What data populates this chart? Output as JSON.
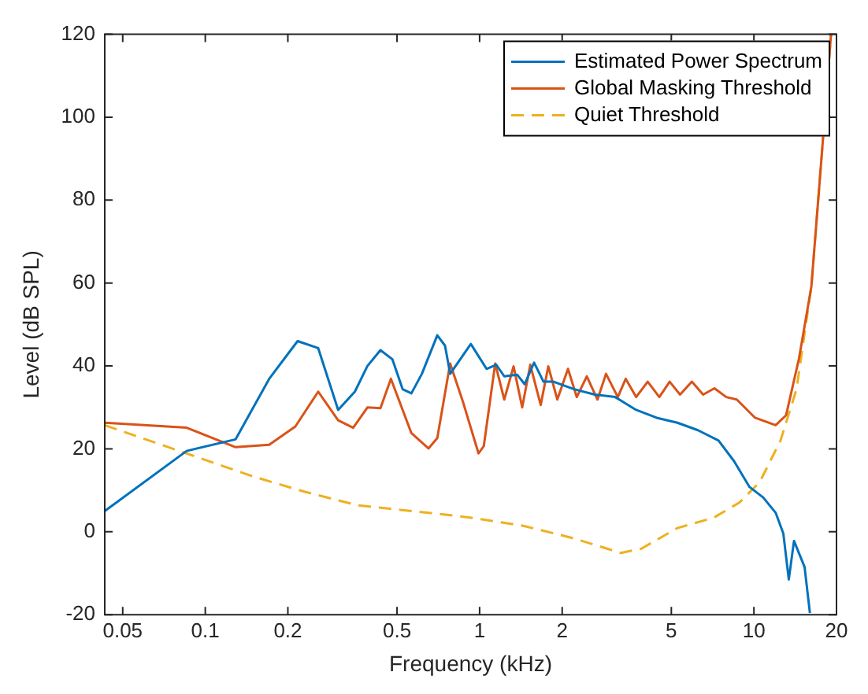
{
  "chart_data": {
    "type": "line",
    "xlabel": "Frequency (kHz)",
    "ylabel": "Level (dB SPL)",
    "log": "x",
    "xlim": [
      0.043,
      20
    ],
    "ylim": [
      -20,
      120
    ],
    "xticks": [
      0.05,
      0.1,
      0.2,
      0.5,
      1,
      2,
      5,
      10,
      20
    ],
    "yticks": [
      -20,
      0,
      20,
      40,
      60,
      80,
      100,
      120
    ],
    "grid": false,
    "legend": "top right",
    "marker": "none",
    "series": [
      {
        "name": "Estimated Power Spectrum",
        "color": "#0072bd",
        "line_style": "solid",
        "x": [
          0.043,
          0.0855,
          0.129,
          0.171,
          0.217,
          0.258,
          0.305,
          0.351,
          0.39,
          0.435,
          0.481,
          0.524,
          0.564,
          0.616,
          0.701,
          0.748,
          0.781,
          0.929,
          1.06,
          1.15,
          1.23,
          1.37,
          1.46,
          1.58,
          1.71,
          1.86,
          2.21,
          2.63,
          3.12,
          3.72,
          4.42,
          5.26,
          6.25,
          7.43,
          8.47,
          9.64,
          10.8,
          12.0,
          12.8,
          13.4,
          14.0,
          15.3,
          16.0
        ],
        "values": [
          5,
          19.5,
          22.3,
          36.9,
          46,
          44.3,
          29.4,
          33.8,
          40,
          43.8,
          41.6,
          34.4,
          33.4,
          38.1,
          47.4,
          44.9,
          38.1,
          45.3,
          39.3,
          40.3,
          37.5,
          37.9,
          35.6,
          40.8,
          36.2,
          36.2,
          34.4,
          33.1,
          32.5,
          29.4,
          27.5,
          26.3,
          24.5,
          22,
          17,
          10.8,
          8.3,
          4.6,
          -0.4,
          -11.5,
          -2.2,
          -8.5,
          -19.6
        ]
      },
      {
        "name": "Global Masking Threshold",
        "color": "#d95319",
        "line_style": "solid",
        "x": [
          0.043,
          0.0855,
          0.129,
          0.171,
          0.213,
          0.258,
          0.305,
          0.346,
          0.39,
          0.435,
          0.475,
          0.564,
          0.651,
          0.701,
          0.781,
          0.87,
          0.991,
          1.036,
          1.14,
          1.23,
          1.33,
          1.43,
          1.53,
          1.67,
          1.78,
          1.92,
          2.1,
          2.26,
          2.46,
          2.69,
          2.89,
          3.19,
          3.41,
          3.72,
          4.1,
          4.52,
          4.93,
          5.38,
          5.94,
          6.53,
          7.18,
          7.93,
          8.66,
          10.1,
          12.0,
          13.1,
          14.6,
          16.2,
          17.7,
          19.1
        ],
        "values": [
          26.3,
          25.1,
          20.4,
          21,
          25.4,
          33.8,
          26.9,
          25.1,
          30,
          29.8,
          36.9,
          23.8,
          20.1,
          22.6,
          40.6,
          31.3,
          18.9,
          20.7,
          40.6,
          31.9,
          39.9,
          30,
          40.3,
          30.6,
          39.9,
          31.9,
          39.3,
          32.5,
          37.5,
          31.9,
          38.1,
          32.5,
          36.9,
          32.5,
          36.2,
          32.5,
          36.2,
          33.1,
          36.2,
          33.1,
          34.6,
          32.5,
          31.9,
          27.5,
          25.7,
          28.1,
          41.8,
          59.2,
          91.5,
          120
        ]
      },
      {
        "name": "Quiet Threshold",
        "color": "#edb120",
        "line_style": "dashed",
        "x": [
          0.043,
          0.0855,
          0.15,
          0.232,
          0.358,
          0.603,
          0.781,
          0.929,
          1.43,
          2.21,
          3.27,
          3.88,
          5.26,
          7.14,
          8.87,
          10.5,
          12.5,
          14.3,
          16.2,
          17.7,
          19.1
        ],
        "values": [
          25.7,
          18.9,
          13.3,
          9.6,
          6.4,
          4.8,
          4,
          3.4,
          1.5,
          -1.6,
          -5.1,
          -4.1,
          0.9,
          3.4,
          7.1,
          12,
          22,
          34.4,
          59.2,
          91.5,
          120
        ]
      }
    ]
  }
}
